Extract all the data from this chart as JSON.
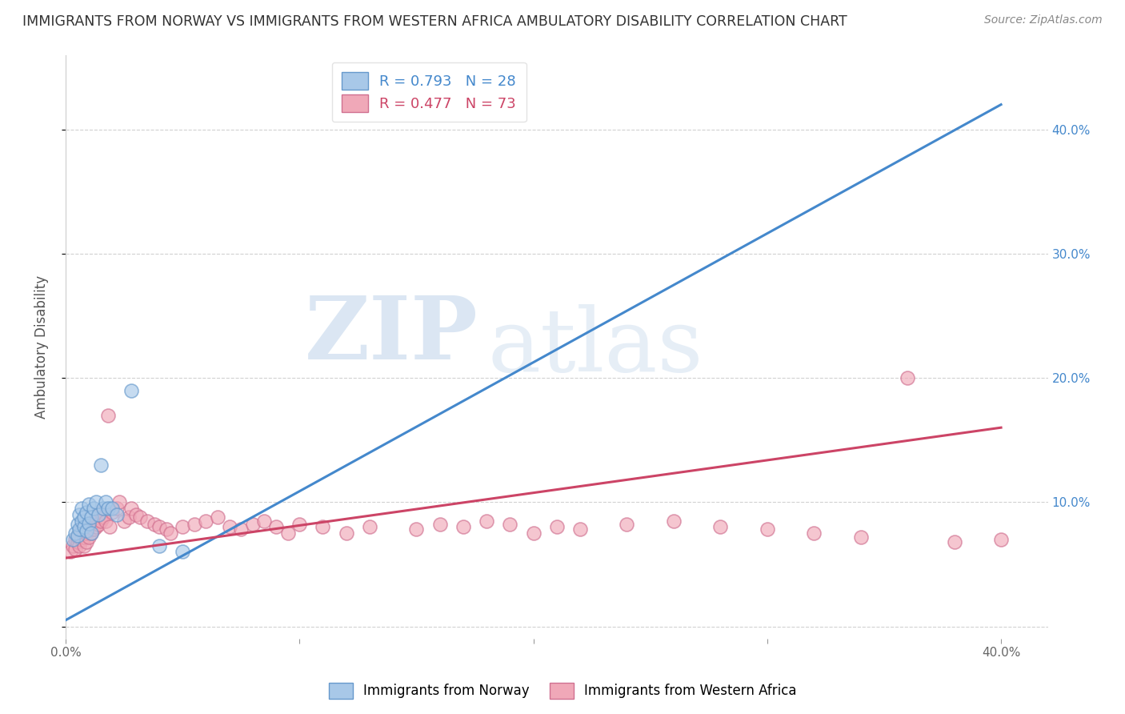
{
  "title": "IMMIGRANTS FROM NORWAY VS IMMIGRANTS FROM WESTERN AFRICA AMBULATORY DISABILITY CORRELATION CHART",
  "source": "Source: ZipAtlas.com",
  "ylabel": "Ambulatory Disability",
  "xlim": [
    0.0,
    0.42
  ],
  "ylim": [
    -0.01,
    0.46
  ],
  "yticks": [
    0.0,
    0.1,
    0.2,
    0.3,
    0.4
  ],
  "ytick_labels_right": [
    "",
    "10.0%",
    "20.0%",
    "30.0%",
    "40.0%"
  ],
  "norway_color": "#a8c8e8",
  "norway_edge": "#6699cc",
  "western_africa_color": "#f0a8b8",
  "western_africa_edge": "#d07090",
  "norway_R": 0.793,
  "norway_N": 28,
  "western_africa_R": 0.477,
  "western_africa_N": 73,
  "norway_line_color": "#4488cc",
  "western_africa_line_color": "#cc4466",
  "norway_line": [
    0.0,
    0.005,
    0.4,
    0.42
  ],
  "wa_line": [
    0.0,
    0.055,
    0.4,
    0.16
  ],
  "legend_label_norway": "Immigrants from Norway",
  "legend_label_western_africa": "Immigrants from Western Africa",
  "background_color": "#ffffff",
  "grid_color": "#cccccc",
  "title_color": "#333333",
  "watermark_zip": "ZIP",
  "watermark_atlas": "atlas",
  "norway_scatter_x": [
    0.003,
    0.004,
    0.005,
    0.005,
    0.006,
    0.006,
    0.007,
    0.007,
    0.008,
    0.008,
    0.009,
    0.009,
    0.01,
    0.01,
    0.011,
    0.011,
    0.012,
    0.013,
    0.014,
    0.015,
    0.016,
    0.017,
    0.018,
    0.02,
    0.022,
    0.028,
    0.04,
    0.05
  ],
  "norway_scatter_y": [
    0.07,
    0.075,
    0.073,
    0.082,
    0.078,
    0.09,
    0.085,
    0.095,
    0.08,
    0.088,
    0.077,
    0.092,
    0.083,
    0.098,
    0.075,
    0.088,
    0.095,
    0.1,
    0.09,
    0.13,
    0.095,
    0.1,
    0.095,
    0.095,
    0.09,
    0.19,
    0.065,
    0.06
  ],
  "western_africa_scatter_x": [
    0.002,
    0.003,
    0.004,
    0.004,
    0.005,
    0.005,
    0.006,
    0.006,
    0.007,
    0.007,
    0.008,
    0.008,
    0.009,
    0.009,
    0.01,
    0.01,
    0.011,
    0.011,
    0.012,
    0.012,
    0.013,
    0.013,
    0.014,
    0.015,
    0.015,
    0.016,
    0.017,
    0.018,
    0.019,
    0.02,
    0.022,
    0.023,
    0.025,
    0.027,
    0.028,
    0.03,
    0.032,
    0.035,
    0.038,
    0.04,
    0.043,
    0.045,
    0.05,
    0.055,
    0.06,
    0.065,
    0.07,
    0.075,
    0.08,
    0.085,
    0.09,
    0.095,
    0.1,
    0.11,
    0.12,
    0.13,
    0.15,
    0.16,
    0.17,
    0.18,
    0.19,
    0.2,
    0.21,
    0.22,
    0.24,
    0.26,
    0.28,
    0.3,
    0.32,
    0.34,
    0.36,
    0.38,
    0.4
  ],
  "western_africa_scatter_y": [
    0.06,
    0.065,
    0.062,
    0.07,
    0.068,
    0.072,
    0.065,
    0.075,
    0.07,
    0.078,
    0.065,
    0.072,
    0.068,
    0.075,
    0.072,
    0.08,
    0.075,
    0.082,
    0.078,
    0.085,
    0.08,
    0.088,
    0.082,
    0.085,
    0.092,
    0.088,
    0.085,
    0.17,
    0.08,
    0.092,
    0.095,
    0.1,
    0.085,
    0.088,
    0.095,
    0.09,
    0.088,
    0.085,
    0.082,
    0.08,
    0.078,
    0.075,
    0.08,
    0.082,
    0.085,
    0.088,
    0.08,
    0.078,
    0.082,
    0.085,
    0.08,
    0.075,
    0.082,
    0.08,
    0.075,
    0.08,
    0.078,
    0.082,
    0.08,
    0.085,
    0.082,
    0.075,
    0.08,
    0.078,
    0.082,
    0.085,
    0.08,
    0.078,
    0.075,
    0.072,
    0.2,
    0.068,
    0.07
  ]
}
